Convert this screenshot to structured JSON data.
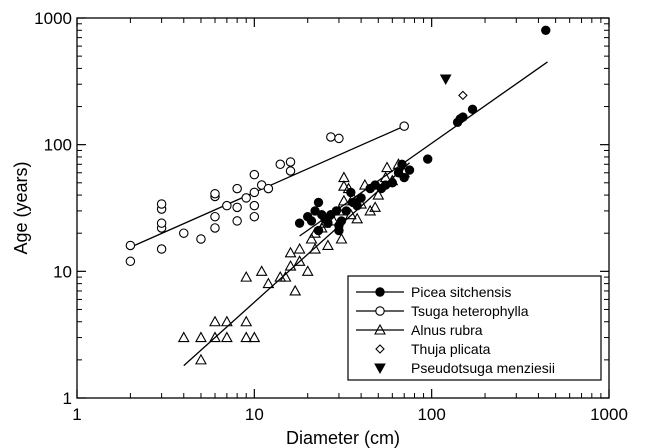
{
  "chart_data": {
    "type": "scatter",
    "title": "",
    "xlabel": "Diameter (cm)",
    "ylabel": "Age (years)",
    "xscale": "log",
    "yscale": "log",
    "xlim": [
      1,
      1000
    ],
    "ylim": [
      1,
      1000
    ],
    "x_ticks": [
      "1",
      "10",
      "100",
      "1000"
    ],
    "y_ticks": [
      "1",
      "10",
      "100",
      "1000"
    ],
    "grid": false,
    "legend_position": "bottom-right",
    "series": [
      {
        "name": "Picea sitchensis",
        "marker": "filled-circle",
        "points": [
          [
            18,
            24
          ],
          [
            20,
            27
          ],
          [
            21,
            25
          ],
          [
            22,
            30
          ],
          [
            23,
            35
          ],
          [
            23,
            21
          ],
          [
            24,
            28
          ],
          [
            25,
            26
          ],
          [
            26,
            24
          ],
          [
            27,
            28
          ],
          [
            29,
            30
          ],
          [
            30,
            21
          ],
          [
            30,
            23
          ],
          [
            31,
            25
          ],
          [
            33,
            30
          ],
          [
            35,
            42
          ],
          [
            36,
            35
          ],
          [
            38,
            33
          ],
          [
            40,
            38
          ],
          [
            45,
            45
          ],
          [
            48,
            48
          ],
          [
            52,
            45
          ],
          [
            55,
            48
          ],
          [
            60,
            50
          ],
          [
            65,
            60
          ],
          [
            68,
            70
          ],
          [
            70,
            55
          ],
          [
            75,
            63
          ],
          [
            95,
            77
          ],
          [
            140,
            150
          ],
          [
            145,
            160
          ],
          [
            150,
            165
          ],
          [
            170,
            190
          ],
          [
            440,
            800
          ]
        ],
        "fit_line": [
          [
            18,
            19
          ],
          [
            450,
            450
          ]
        ]
      },
      {
        "name": "Tsuga heterophylla",
        "marker": "open-circle",
        "points": [
          [
            2,
            12
          ],
          [
            2,
            16
          ],
          [
            3,
            15
          ],
          [
            3,
            22
          ],
          [
            3,
            24
          ],
          [
            3,
            31
          ],
          [
            3,
            34
          ],
          [
            4,
            20
          ],
          [
            5,
            18
          ],
          [
            6,
            22
          ],
          [
            6,
            27
          ],
          [
            6,
            39
          ],
          [
            6,
            41
          ],
          [
            7,
            33
          ],
          [
            8,
            25
          ],
          [
            8,
            32
          ],
          [
            8,
            45
          ],
          [
            9,
            38
          ],
          [
            10,
            27
          ],
          [
            10,
            33
          ],
          [
            10,
            42
          ],
          [
            10,
            58
          ],
          [
            11,
            48
          ],
          [
            12,
            45
          ],
          [
            14,
            70
          ],
          [
            16,
            62
          ],
          [
            16,
            73
          ],
          [
            27,
            115
          ],
          [
            30,
            112
          ],
          [
            70,
            140
          ]
        ],
        "fit_line": [
          [
            2,
            15.5
          ],
          [
            70,
            140
          ]
        ]
      },
      {
        "name": "Alnus rubra",
        "marker": "open-triangle",
        "points": [
          [
            4,
            3
          ],
          [
            5,
            3
          ],
          [
            5,
            2
          ],
          [
            6,
            3
          ],
          [
            6,
            4
          ],
          [
            7,
            3
          ],
          [
            7,
            4
          ],
          [
            9,
            3
          ],
          [
            9,
            4
          ],
          [
            9,
            9
          ],
          [
            10,
            3
          ],
          [
            11,
            10
          ],
          [
            12,
            8
          ],
          [
            14,
            9
          ],
          [
            15,
            9
          ],
          [
            16,
            11
          ],
          [
            16,
            14
          ],
          [
            17,
            7
          ],
          [
            18,
            12
          ],
          [
            18,
            15
          ],
          [
            20,
            10
          ],
          [
            21,
            18
          ],
          [
            22,
            15
          ],
          [
            22,
            20
          ],
          [
            24,
            22
          ],
          [
            25,
            24
          ],
          [
            26,
            16
          ],
          [
            28,
            25
          ],
          [
            30,
            30
          ],
          [
            31,
            18
          ],
          [
            32,
            36
          ],
          [
            32,
            47
          ],
          [
            32,
            55
          ],
          [
            34,
            45
          ],
          [
            35,
            28
          ],
          [
            36,
            38
          ],
          [
            38,
            26
          ],
          [
            40,
            34
          ],
          [
            42,
            48
          ],
          [
            45,
            30
          ],
          [
            48,
            32
          ],
          [
            50,
            40
          ],
          [
            55,
            55
          ],
          [
            56,
            66
          ],
          [
            60,
            52
          ],
          [
            65,
            70
          ],
          [
            70,
            60
          ]
        ],
        "fit_line": [
          [
            4,
            1.8
          ],
          [
            75,
            72
          ]
        ]
      },
      {
        "name": "Thuja plicata",
        "marker": "open-diamond",
        "points": [
          [
            150,
            245
          ]
        ]
      },
      {
        "name": "Pseudotsuga menziesii",
        "marker": "filled-triangle-down",
        "points": [
          [
            120,
            330
          ]
        ]
      }
    ]
  }
}
